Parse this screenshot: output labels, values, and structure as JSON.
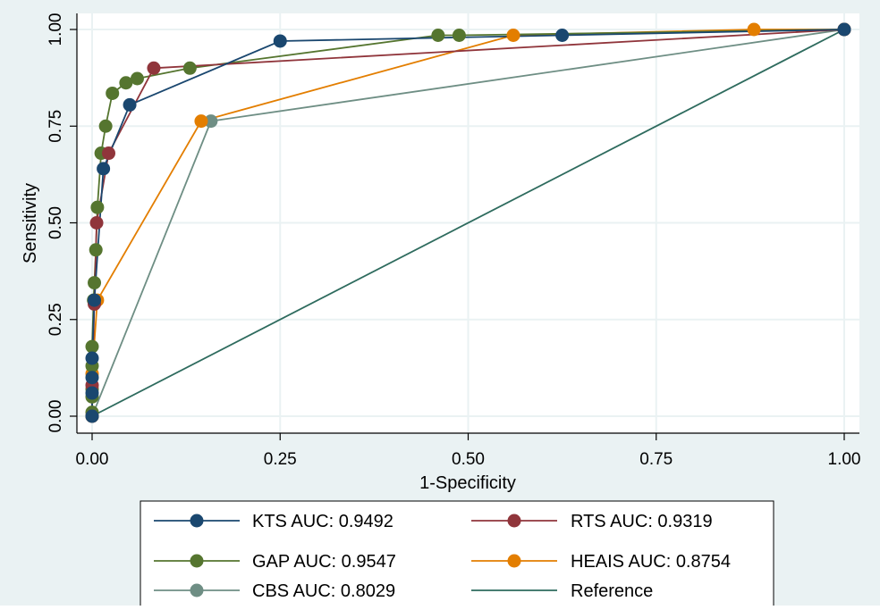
{
  "chart_data": {
    "type": "line",
    "xlabel": "1-Specificity",
    "ylabel": "Sensitivity",
    "xlim": [
      0,
      1
    ],
    "ylim": [
      0,
      1
    ],
    "xticks": [
      "0.00",
      "0.25",
      "0.50",
      "0.75",
      "1.00"
    ],
    "yticks": [
      "0.00",
      "0.25",
      "0.50",
      "0.75",
      "1.00"
    ],
    "grid": true,
    "legend_position": "bottom",
    "series": [
      {
        "name": "KTS AUC: 0.9492",
        "color": "#1a476f",
        "points": [
          [
            0,
            0
          ],
          [
            0,
            0.06
          ],
          [
            0,
            0.1
          ],
          [
            0,
            0.15
          ],
          [
            0.003,
            0.3
          ],
          [
            0.015,
            0.64
          ],
          [
            0.05,
            0.805
          ],
          [
            0.25,
            0.97
          ],
          [
            0.625,
            0.985
          ],
          [
            1,
            1
          ]
        ]
      },
      {
        "name": "RTS AUC: 0.9319",
        "color": "#90353b",
        "points": [
          [
            0,
            0
          ],
          [
            0,
            0.08
          ],
          [
            0.003,
            0.29
          ],
          [
            0.006,
            0.5
          ],
          [
            0.022,
            0.68
          ],
          [
            0.082,
            0.9
          ],
          [
            1,
            1
          ]
        ]
      },
      {
        "name": "GAP AUC: 0.9547",
        "color": "#55752f",
        "points": [
          [
            0,
            0
          ],
          [
            0,
            0.01
          ],
          [
            0,
            0.05
          ],
          [
            0,
            0.07
          ],
          [
            0,
            0.13
          ],
          [
            0,
            0.18
          ],
          [
            0.002,
            0.3
          ],
          [
            0.003,
            0.345
          ],
          [
            0.005,
            0.43
          ],
          [
            0.007,
            0.54
          ],
          [
            0.012,
            0.68
          ],
          [
            0.018,
            0.75
          ],
          [
            0.027,
            0.835
          ],
          [
            0.045,
            0.862
          ],
          [
            0.06,
            0.873
          ],
          [
            0.13,
            0.9
          ],
          [
            0.46,
            0.985
          ],
          [
            0.488,
            0.985
          ],
          [
            1,
            1
          ]
        ]
      },
      {
        "name": "HEAIS AUC: 0.8754",
        "color": "#e37e00",
        "points": [
          [
            0,
            0
          ],
          [
            0,
            0.11
          ],
          [
            0.007,
            0.3
          ],
          [
            0.145,
            0.763
          ],
          [
            0.56,
            0.985
          ],
          [
            0.88,
            1
          ],
          [
            1,
            1
          ]
        ]
      },
      {
        "name": "CBS AUC: 0.8029",
        "color": "#6e8e84",
        "points": [
          [
            0,
            0
          ],
          [
            0.158,
            0.763
          ],
          [
            1,
            1
          ]
        ]
      },
      {
        "name": "Reference",
        "color": "#2e6b5e",
        "points": [
          [
            0,
            0
          ],
          [
            1,
            1
          ]
        ],
        "markers": false
      }
    ]
  }
}
